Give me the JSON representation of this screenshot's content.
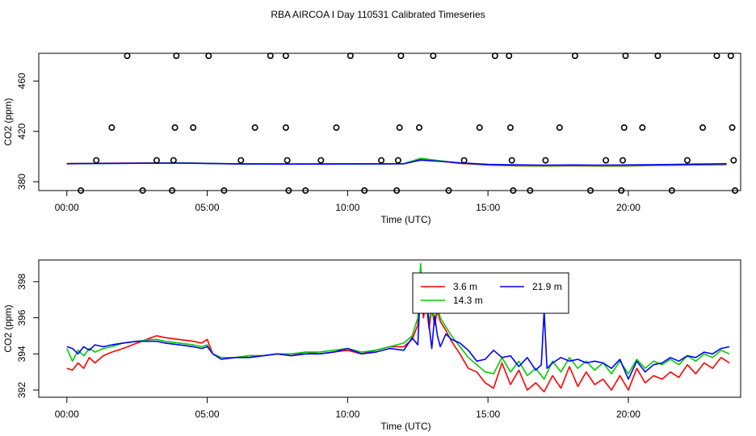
{
  "figure_title": "RBA AIRCOA I  Day 110531  Calibrated Timeseries",
  "chart_data": [
    {
      "type": "scatter",
      "title": "RBA AIRCOA I  Day 110531  Calibrated Timeseries",
      "xlabel": "Time (UTC)",
      "ylabel": "CO2 (ppm)",
      "xlim": [
        -1.0,
        24.0
      ],
      "ylim": [
        373,
        482
      ],
      "x_ticks": [
        0,
        5,
        10,
        15,
        20
      ],
      "x_tick_labels": [
        "00:00",
        "05:00",
        "10:00",
        "15:00",
        "20:00"
      ],
      "y_ticks": [
        380,
        420,
        460
      ],
      "y_tick_labels": [
        "380",
        "420",
        "460"
      ],
      "points": [
        [
          0.5,
          373
        ],
        [
          1.05,
          397
        ],
        [
          1.6,
          423
        ],
        [
          2.15,
          480
        ],
        [
          2.7,
          373
        ],
        [
          3.2,
          397
        ],
        [
          3.75,
          373
        ],
        [
          3.8,
          397
        ],
        [
          3.85,
          423
        ],
        [
          3.9,
          480
        ],
        [
          4.5,
          423
        ],
        [
          5.05,
          480
        ],
        [
          5.6,
          373
        ],
        [
          6.2,
          397
        ],
        [
          6.7,
          423
        ],
        [
          7.25,
          480
        ],
        [
          7.8,
          480
        ],
        [
          7.8,
          423
        ],
        [
          7.85,
          397
        ],
        [
          7.9,
          373
        ],
        [
          8.5,
          373
        ],
        [
          9.05,
          397
        ],
        [
          9.6,
          423
        ],
        [
          10.1,
          480
        ],
        [
          10.6,
          373
        ],
        [
          11.2,
          397
        ],
        [
          11.75,
          373
        ],
        [
          11.8,
          397
        ],
        [
          11.85,
          423
        ],
        [
          11.9,
          480
        ],
        [
          12.55,
          423
        ],
        [
          13.05,
          480
        ],
        [
          13.6,
          373
        ],
        [
          14.15,
          397
        ],
        [
          14.7,
          423
        ],
        [
          15.25,
          480
        ],
        [
          15.75,
          480
        ],
        [
          15.8,
          423
        ],
        [
          15.85,
          397
        ],
        [
          15.9,
          373
        ],
        [
          16.5,
          373
        ],
        [
          17.05,
          397
        ],
        [
          17.55,
          423
        ],
        [
          18.1,
          480
        ],
        [
          18.65,
          373
        ],
        [
          19.2,
          397
        ],
        [
          19.75,
          373
        ],
        [
          19.8,
          397
        ],
        [
          19.85,
          423
        ],
        [
          19.9,
          480
        ],
        [
          20.5,
          423
        ],
        [
          21.05,
          480
        ],
        [
          21.55,
          373
        ],
        [
          22.1,
          397
        ],
        [
          22.65,
          423
        ],
        [
          23.15,
          480
        ],
        [
          23.65,
          480
        ],
        [
          23.7,
          423
        ],
        [
          23.75,
          397
        ],
        [
          23.8,
          373
        ]
      ],
      "series": [
        {
          "name": "3.6 m",
          "color": "#ff0000",
          "x": [
            0,
            2,
            4,
            6,
            8,
            10,
            12,
            12.6,
            13.3,
            14,
            15,
            16,
            17,
            18,
            19,
            20,
            21,
            22,
            23.5
          ],
          "values": [
            394.5,
            394.8,
            395.0,
            394.2,
            394.0,
            394.2,
            394.3,
            397.8,
            396.4,
            394.6,
            393.2,
            392.6,
            392.4,
            392.6,
            392.4,
            392.5,
            393.0,
            393.2,
            393.5
          ]
        },
        {
          "name": "14.3 m",
          "color": "#00cc00",
          "x": [
            0,
            2,
            4,
            6,
            8,
            10,
            12,
            12.6,
            13.3,
            14,
            15,
            16,
            17,
            18,
            19,
            20,
            21,
            22,
            23.5
          ],
          "values": [
            394.3,
            394.6,
            394.9,
            394.2,
            394.0,
            394.2,
            394.3,
            398.6,
            396.6,
            394.8,
            393.5,
            392.8,
            392.6,
            392.8,
            392.6,
            392.7,
            393.2,
            393.5,
            393.9
          ]
        },
        {
          "name": "21.9 m",
          "color": "#0000ff",
          "x": [
            0,
            2,
            4,
            6,
            8,
            10,
            12,
            12.6,
            13.3,
            14,
            15,
            16,
            17,
            18,
            19,
            20,
            21,
            22,
            23.5
          ],
          "values": [
            394.3,
            394.6,
            394.8,
            394.2,
            394.0,
            394.1,
            394.3,
            397.2,
            396.2,
            395.0,
            393.8,
            393.4,
            393.2,
            393.3,
            393.2,
            393.3,
            393.6,
            393.9,
            394.3
          ]
        }
      ]
    },
    {
      "type": "line",
      "title": "",
      "xlabel": "Time (UTC)",
      "ylabel": "CO2 (ppm)",
      "xlim": [
        -1.0,
        24.0
      ],
      "ylim": [
        391.6,
        399.2
      ],
      "x_ticks": [
        0,
        5,
        10,
        15,
        20
      ],
      "x_tick_labels": [
        "00:00",
        "05:00",
        "10:00",
        "15:00",
        "20:00"
      ],
      "y_ticks": [
        392,
        394,
        396,
        398
      ],
      "y_tick_labels": [
        "392",
        "394",
        "396",
        "398"
      ],
      "legend_position": "top-center",
      "series": [
        {
          "name": "3.6 m",
          "color": "#ff0000",
          "x": [
            0.0,
            0.2,
            0.4,
            0.6,
            0.8,
            1.0,
            1.3,
            1.6,
            2.0,
            2.5,
            3.0,
            3.2,
            3.5,
            4.0,
            4.5,
            4.8,
            5.0,
            5.2,
            5.5,
            6.0,
            6.5,
            7.0,
            7.5,
            8.0,
            8.5,
            9.0,
            9.5,
            10.0,
            10.5,
            11.0,
            11.5,
            12.0,
            12.3,
            12.5,
            12.6,
            12.7,
            12.8,
            12.9,
            13.0,
            13.1,
            13.2,
            13.3,
            13.5,
            13.7,
            14.0,
            14.3,
            14.6,
            14.9,
            15.2,
            15.5,
            15.8,
            16.1,
            16.4,
            16.7,
            17.0,
            17.3,
            17.6,
            17.9,
            18.2,
            18.5,
            18.8,
            19.1,
            19.4,
            19.7,
            20.0,
            20.3,
            20.6,
            20.9,
            21.2,
            21.5,
            21.8,
            22.1,
            22.4,
            22.7,
            23.0,
            23.3,
            23.6
          ],
          "values": [
            393.2,
            393.1,
            393.5,
            393.2,
            393.8,
            393.5,
            393.9,
            394.1,
            394.3,
            394.6,
            394.9,
            395.0,
            394.9,
            394.8,
            394.7,
            394.6,
            394.8,
            394.0,
            393.8,
            393.8,
            393.9,
            393.9,
            394.0,
            393.9,
            394.1,
            394.0,
            394.1,
            394.2,
            394.0,
            394.2,
            394.4,
            394.4,
            394.8,
            395.6,
            398.5,
            396.0,
            396.8,
            395.4,
            396.5,
            395.6,
            396.4,
            395.8,
            395.3,
            394.7,
            394.0,
            393.2,
            393.0,
            392.4,
            392.1,
            393.5,
            392.3,
            393.1,
            392.0,
            392.4,
            391.9,
            392.8,
            392.1,
            393.3,
            392.2,
            393.0,
            392.3,
            392.6,
            392.0,
            392.8,
            392.0,
            393.2,
            392.4,
            392.8,
            392.6,
            393.0,
            392.7,
            393.4,
            392.9,
            393.5,
            393.2,
            393.8,
            393.5
          ]
        },
        {
          "name": "14.3 m",
          "color": "#00cc00",
          "x": [
            0.0,
            0.2,
            0.4,
            0.6,
            0.8,
            1.0,
            1.3,
            1.6,
            2.0,
            2.5,
            3.0,
            3.2,
            3.5,
            4.0,
            4.5,
            4.8,
            5.0,
            5.2,
            5.5,
            6.0,
            6.5,
            7.0,
            7.5,
            8.0,
            8.5,
            9.0,
            9.5,
            10.0,
            10.5,
            11.0,
            11.5,
            12.0,
            12.3,
            12.5,
            12.6,
            12.7,
            12.8,
            12.9,
            13.0,
            13.1,
            13.2,
            13.3,
            13.5,
            13.7,
            14.0,
            14.3,
            14.6,
            14.9,
            15.2,
            15.5,
            15.8,
            16.1,
            16.4,
            16.7,
            17.0,
            17.3,
            17.6,
            17.9,
            18.2,
            18.5,
            18.8,
            19.1,
            19.4,
            19.7,
            20.0,
            20.3,
            20.6,
            20.9,
            21.2,
            21.5,
            21.8,
            22.1,
            22.4,
            22.7,
            23.0,
            23.3,
            23.6
          ],
          "values": [
            394.3,
            393.6,
            394.2,
            393.9,
            394.3,
            394.1,
            394.3,
            394.4,
            394.6,
            394.7,
            394.8,
            394.8,
            394.7,
            394.6,
            394.5,
            394.4,
            394.5,
            394.0,
            393.8,
            393.8,
            393.9,
            393.9,
            394.0,
            394.0,
            394.1,
            394.1,
            394.2,
            394.3,
            394.1,
            394.2,
            394.4,
            394.6,
            395.0,
            396.0,
            399.0,
            396.5,
            397.0,
            395.8,
            396.6,
            395.9,
            396.6,
            396.0,
            395.5,
            395.0,
            394.4,
            393.8,
            393.4,
            393.0,
            392.9,
            393.8,
            393.0,
            393.6,
            392.8,
            393.2,
            392.6,
            393.6,
            393.0,
            393.8,
            393.2,
            393.6,
            393.1,
            393.5,
            392.9,
            393.6,
            392.9,
            393.7,
            393.2,
            393.6,
            393.4,
            393.7,
            393.4,
            393.9,
            393.6,
            394.0,
            393.8,
            394.2,
            394.0
          ]
        },
        {
          "name": "21.9 m",
          "color": "#0000ff",
          "x": [
            0.0,
            0.2,
            0.4,
            0.6,
            0.8,
            1.0,
            1.3,
            1.6,
            2.0,
            2.5,
            3.0,
            3.2,
            3.5,
            4.0,
            4.5,
            4.8,
            5.0,
            5.2,
            5.5,
            6.0,
            6.5,
            7.0,
            7.5,
            8.0,
            8.5,
            9.0,
            9.5,
            10.0,
            10.5,
            11.0,
            11.5,
            12.0,
            12.3,
            12.5,
            12.6,
            12.7,
            12.8,
            12.9,
            13.0,
            13.1,
            13.2,
            13.3,
            13.5,
            13.7,
            14.0,
            14.3,
            14.6,
            14.9,
            15.2,
            15.5,
            15.8,
            16.1,
            16.4,
            16.7,
            16.9,
            17.0,
            17.1,
            17.3,
            17.6,
            17.9,
            18.2,
            18.5,
            18.8,
            19.1,
            19.4,
            19.7,
            20.0,
            20.3,
            20.6,
            20.9,
            21.2,
            21.5,
            21.8,
            22.1,
            22.4,
            22.7,
            23.0,
            23.3,
            23.6
          ],
          "values": [
            394.4,
            394.3,
            394.0,
            394.4,
            394.2,
            394.5,
            394.4,
            394.5,
            394.6,
            394.7,
            394.7,
            394.7,
            394.6,
            394.5,
            394.4,
            394.3,
            394.4,
            394.0,
            393.7,
            393.8,
            393.8,
            393.9,
            394.0,
            393.9,
            394.0,
            394.0,
            394.1,
            394.3,
            394.0,
            394.1,
            394.3,
            394.2,
            394.9,
            394.5,
            397.8,
            396.2,
            397.3,
            395.6,
            394.3,
            396.1,
            395.0,
            394.4,
            395.1,
            394.8,
            394.6,
            394.2,
            393.6,
            393.7,
            394.2,
            393.8,
            393.9,
            393.3,
            393.8,
            393.1,
            393.4,
            396.4,
            393.2,
            393.5,
            393.8,
            393.6,
            393.7,
            393.5,
            393.6,
            393.5,
            393.2,
            393.7,
            392.6,
            393.6,
            393.0,
            393.4,
            393.5,
            393.8,
            393.6,
            393.9,
            393.8,
            394.1,
            394.0,
            394.3,
            394.4
          ]
        }
      ]
    }
  ]
}
